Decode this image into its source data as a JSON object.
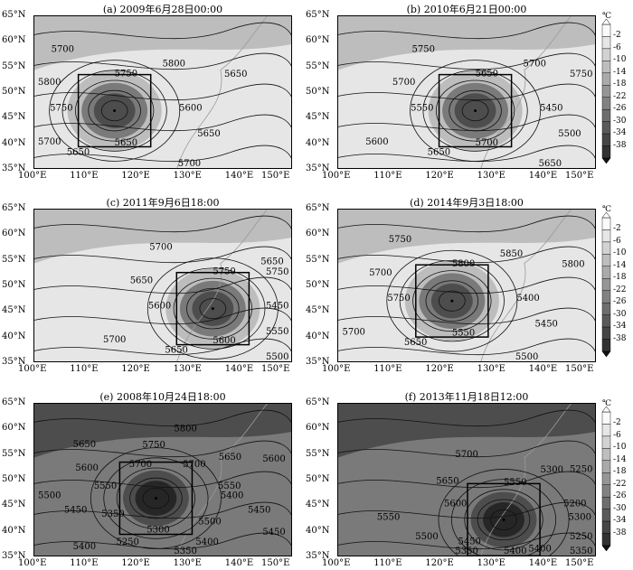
{
  "panels": [
    {
      "id": "a",
      "title": "(a) 2009年6月28日00:00",
      "contour_labels": [
        "5600",
        "5650",
        "5700",
        "5650",
        "5650",
        "5700",
        "5750",
        "5800",
        "5700",
        "5750",
        "5800",
        "5650"
      ],
      "has_colorbar": false
    },
    {
      "id": "b",
      "title": "(b) 2010年6月21日00:00",
      "contour_labels": [
        "5450",
        "5500",
        "5650",
        "5700",
        "5650",
        "5600",
        "5550",
        "5700",
        "5750",
        "5650",
        "5700",
        "5750"
      ],
      "has_colorbar": true
    },
    {
      "id": "c",
      "title": "(c) 2011年9月6日18:00",
      "contour_labels": [
        "5450",
        "5550",
        "5500",
        "5600",
        "5650",
        "5700",
        "5600",
        "5650",
        "5700",
        "5750",
        "5650",
        "5750"
      ],
      "has_colorbar": false
    },
    {
      "id": "d",
      "title": "(d) 2014年9月3日18:00",
      "contour_labels": [
        "5400",
        "5450",
        "5500",
        "5550",
        "5650",
        "5700",
        "5750",
        "5700",
        "5750",
        "5800",
        "5850",
        "5800"
      ],
      "has_colorbar": true
    },
    {
      "id": "e",
      "title": "(e) 2008年10月24日18:00",
      "contour_labels": [
        "5400",
        "5450",
        "5450",
        "5500",
        "5400",
        "5350",
        "5300",
        "5250",
        "5400",
        "5350",
        "5450",
        "5500",
        "5550",
        "5600",
        "5650",
        "5700",
        "5750",
        "5800",
        "5700",
        "5650",
        "5600",
        "5550"
      ],
      "has_colorbar": false
    },
    {
      "id": "f",
      "title": "(f) 2013年11月18日12:00",
      "contour_labels": [
        "5300",
        "5250",
        "5350",
        "5400",
        "5400",
        "5350",
        "5450",
        "5500",
        "5550",
        "5600",
        "5650",
        "5700",
        "5550",
        "5300",
        "5250",
        "5200"
      ],
      "has_colorbar": true
    }
  ],
  "axes": {
    "x_ticks": [
      "100°E",
      "110°E",
      "120°E",
      "130°E",
      "140°E",
      "150°E"
    ],
    "y_ticks": [
      "65°N",
      "60°N",
      "55°N",
      "50°N",
      "45°N",
      "40°N",
      "35°N"
    ]
  },
  "colorbar": {
    "unit": "℃",
    "labels": [
      "-2",
      "-6",
      "-10",
      "-14",
      "-18",
      "-22",
      "-26",
      "-30",
      "-34",
      "-38"
    ]
  },
  "colors": {
    "shade_light": "#e6e6e6",
    "shade_mid": "#bdbdbd",
    "shade_dark": "#7a7a7a",
    "shade_darker": "#4d4d4d",
    "shade_darkest": "#262626"
  }
}
